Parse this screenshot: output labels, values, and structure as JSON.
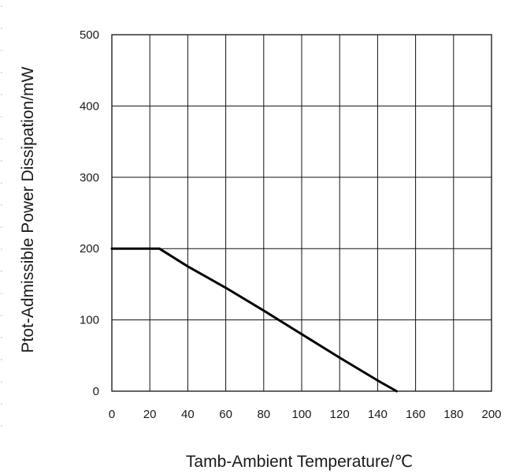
{
  "chart_data": {
    "type": "line",
    "title": "",
    "xlabel": "Tamb-Ambient Temperature/℃",
    "ylabel": "Ptot-Admissible Power Dissipation/mW",
    "xlim": [
      0,
      200
    ],
    "ylim": [
      0,
      500
    ],
    "x_ticks": [
      0,
      20,
      40,
      60,
      80,
      100,
      120,
      140,
      160,
      180,
      200
    ],
    "y_ticks": [
      0,
      100,
      200,
      300,
      400,
      500
    ],
    "x_tick_labels": [
      "0",
      "20",
      "40",
      "60",
      "80",
      "100",
      "120",
      "140",
      "160",
      "180",
      "200"
    ],
    "y_tick_labels": [
      "0",
      "100",
      "200",
      "300",
      "400",
      "500"
    ],
    "grid": true,
    "legend": "none",
    "series": [
      {
        "color": "#000000",
        "x": [
          0,
          25,
          40,
          60,
          80,
          100,
          120,
          140,
          150
        ],
        "y": [
          200,
          200,
          175,
          145,
          113,
          80,
          47,
          15,
          0
        ]
      }
    ]
  }
}
